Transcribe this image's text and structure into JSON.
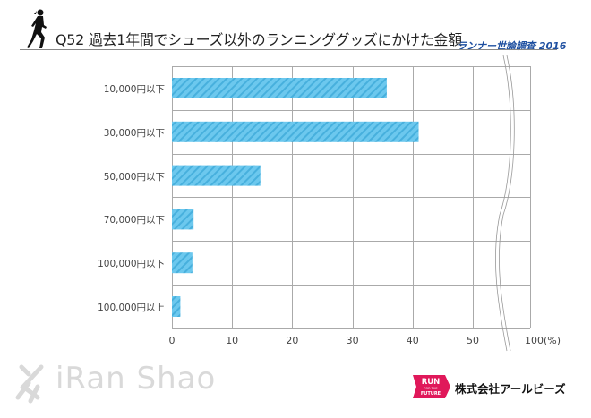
{
  "header": {
    "title": "Q52 過去1年間でシューズ以外のランニンググッズにかけた金額",
    "survey_label": "ランナー世論調査 2016"
  },
  "footer": {
    "watermark": "iRan Shao",
    "badge_top": "RUN",
    "badge_mid": "FOR THE",
    "badge_bottom": "FUTURE",
    "company": "株式会社アールビーズ"
  },
  "colors": {
    "bar_fill": "#6cc8ee",
    "bar_stripe": "#47b0dd",
    "grid": "#aaaaaa",
    "survey_label": "#1e4fa0",
    "badge": "#e0185a"
  },
  "chart_data": {
    "type": "bar",
    "orientation": "horizontal",
    "title": "Q52 過去1年間でシューズ以外のランニンググッズにかけた金額",
    "categories": [
      "10,000円以下",
      "30,000円以下",
      "50,000円以下",
      "70,000円以下",
      "100,000円以下",
      "100,000円以上"
    ],
    "values": [
      35.7,
      41.0,
      14.7,
      3.6,
      3.4,
      1.4
    ],
    "xlabel": "(%)",
    "ylabel": "",
    "xlim": [
      0,
      100
    ],
    "axis_break": "between 50 and 100",
    "x_ticks": [
      "0",
      "10",
      "20",
      "30",
      "40",
      "50",
      "100"
    ],
    "x_unit": "(%)",
    "grid": true,
    "legend": "none"
  }
}
